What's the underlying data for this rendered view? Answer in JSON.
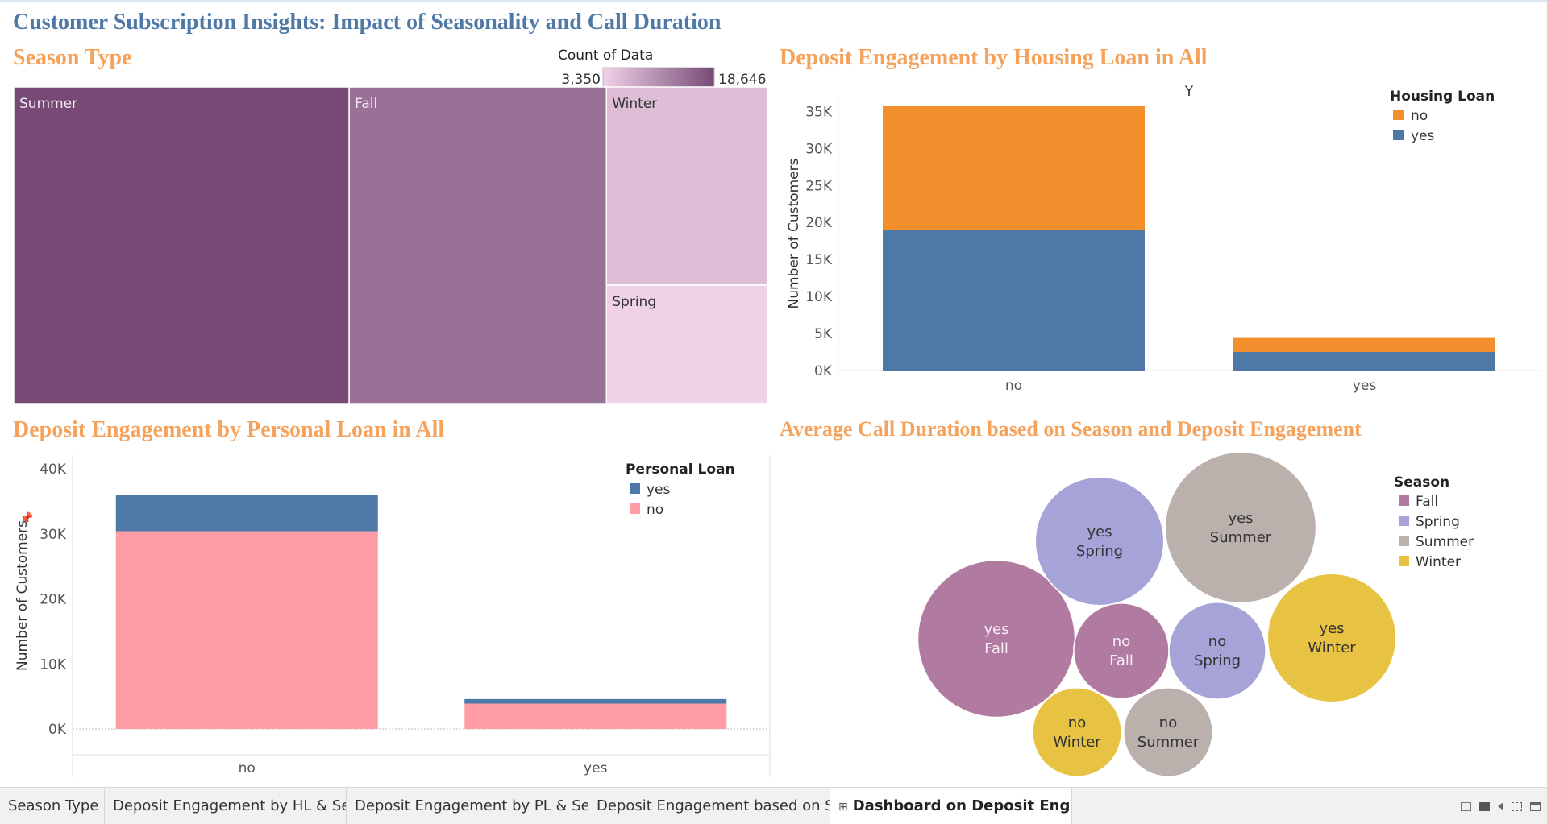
{
  "dashboard": {
    "title": "Customer Subscription Insights: Impact of Seasonality and Call Duration"
  },
  "panels": {
    "season": {
      "title": "Season Type"
    },
    "housing": {
      "title": "Deposit Engagement by Housing Loan in All"
    },
    "personal": {
      "title": "Deposit Engagement by Personal Loan in All"
    },
    "duration": {
      "title": "Average Call Duration based on Season and Deposit Engagement"
    }
  },
  "chart_data": [
    {
      "id": "season_treemap",
      "type": "treemap",
      "title": "Season Type",
      "categories": [
        "Summer",
        "Fall",
        "Winter",
        "Spring"
      ],
      "values": [
        18646,
        14300,
        5600,
        3350
      ],
      "color_legend": {
        "title": "Count of Data",
        "min_label": "3,350",
        "max_label": "18,646",
        "min": 3350,
        "max": 18646,
        "color_low": "#f0d2e8",
        "color_high": "#764a75"
      }
    },
    {
      "id": "housing_bar",
      "type": "bar",
      "stacked": true,
      "title": "Deposit Engagement by Housing Loan in All",
      "xlabel": "Y",
      "ylabel": "Number of Customers",
      "categories": [
        "no",
        "yes"
      ],
      "ylim": [
        0,
        37000
      ],
      "ticks": [
        0,
        5000,
        10000,
        15000,
        20000,
        25000,
        30000,
        35000
      ],
      "tick_labels": [
        "0K",
        "5K",
        "10K",
        "15K",
        "20K",
        "25K",
        "30K",
        "35K"
      ],
      "legend": {
        "title": "Housing Loan"
      },
      "series": [
        {
          "name": "yes",
          "color": "#4e79a7",
          "values": [
            19000,
            2500
          ]
        },
        {
          "name": "no",
          "color": "#f28e2b",
          "values": [
            16700,
            1900
          ]
        }
      ]
    },
    {
      "id": "personal_bar",
      "type": "bar",
      "stacked": true,
      "title": "Deposit Engagement by Personal Loan in All",
      "xlabel": "",
      "ylabel": "Number of Customers",
      "categories": [
        "no",
        "yes"
      ],
      "ylim": [
        0,
        41000
      ],
      "ticks": [
        0,
        10000,
        20000,
        30000,
        40000
      ],
      "tick_labels": [
        "0K",
        "10K",
        "20K",
        "30K",
        "40K"
      ],
      "legend": {
        "title": "Personal Loan"
      },
      "series": [
        {
          "name": "no",
          "color": "#ff9da7",
          "values": [
            30400,
            3900
          ]
        },
        {
          "name": "yes",
          "color": "#4e79a7",
          "values": [
            5600,
            700
          ]
        }
      ]
    },
    {
      "id": "duration_bubbles",
      "type": "bubble",
      "title": "Average Call Duration based on Season and Deposit Engagement",
      "legend": {
        "title": "Season",
        "items": [
          {
            "name": "Fall",
            "color": "#b07aa1"
          },
          {
            "name": "Spring",
            "color": "#a5a3d8"
          },
          {
            "name": "Summer",
            "color": "#bab0ac"
          },
          {
            "name": "Winter",
            "color": "#e8c343"
          }
        ]
      },
      "bubbles": [
        {
          "deposit": "yes",
          "season": "Fall",
          "value": 99
        },
        {
          "deposit": "yes",
          "season": "Summer",
          "value": 95
        },
        {
          "deposit": "yes",
          "season": "Spring",
          "value": 81
        },
        {
          "deposit": "yes",
          "season": "Winter",
          "value": 81
        },
        {
          "deposit": "no",
          "season": "Fall",
          "value": 60
        },
        {
          "deposit": "no",
          "season": "Spring",
          "value": 61
        },
        {
          "deposit": "no",
          "season": "Summer",
          "value": 56
        },
        {
          "deposit": "no",
          "season": "Winter",
          "value": 56
        }
      ]
    }
  ],
  "tabs": [
    {
      "label": "Season Type"
    },
    {
      "label": "Deposit Engagement by HL & Se..."
    },
    {
      "label": "Deposit Engagement by PL & Se..."
    },
    {
      "label": "Deposit Engagement based on S..."
    },
    {
      "label": "Dashboard on Deposit Enga...",
      "active": true
    }
  ]
}
